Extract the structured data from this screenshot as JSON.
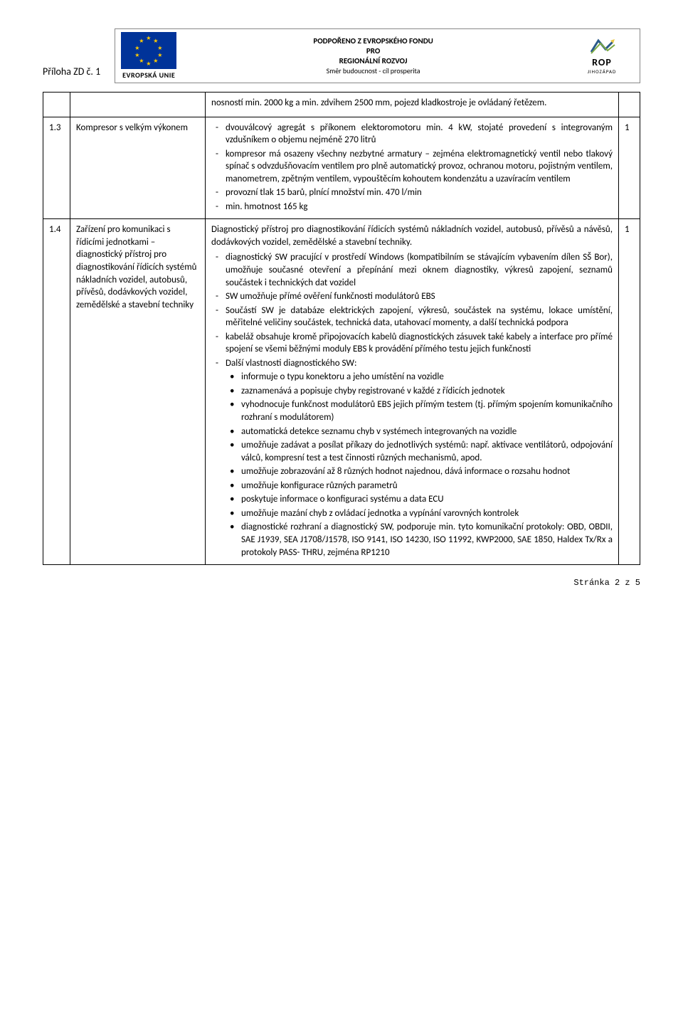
{
  "header": {
    "label": "Příloha ZD č. 1",
    "eu_label": "EVROPSKÁ UNIE",
    "banner_line1": "PODPOŘENO Z EVROPSKÉHO FONDU",
    "banner_line2": "PRO",
    "banner_line3": "REGIONÁLNÍ ROZVOJ",
    "banner_line4": "Směr budoucnost - cíl prosperita",
    "rop_text": "ROP",
    "rop_sub": "JIHOZÁPAD"
  },
  "rows": [
    {
      "num": "",
      "name": "",
      "desc_intro": "nosností min. 2000 kg a min. zdvihem 2500 mm, pojezd kladkostroje je ovládaný řetězem.",
      "qty": ""
    },
    {
      "num": "1.3",
      "name": "Kompresor s velkým výkonem",
      "dashes": [
        "dvouválcový agregát s příkonem elektoromotoru min. 4 kW, stojaté provedení s integrovaným vzdušníkem o objemu nejméně 270 litrů",
        "kompresor má osazeny všechny nezbytné armatury – zejména elektromagnetický ventil nebo tlakový spínač s odvzdušňovacím ventilem pro plně automatický provoz, ochranou motoru, pojistným ventilem, manometrem, zpětným ventilem, vypouštěcím kohoutem kondenzátu a uzavíracím ventilem",
        "provozní tlak 15 barů, plnící množství min. 470 l/min",
        "min. hmotnost 165 kg"
      ],
      "qty": "1"
    },
    {
      "num": "1.4",
      "name": "Zařízení pro komunikaci s řídicími jednotkami – diagnostický přístroj pro diagnostikování řídicích systémů nákladních vozidel, autobusů, přívěsů, dodávkových vozidel, zemědělské a stavební techniky",
      "intro": "Diagnostický přístroj pro diagnostikování řídicích systémů nákladních vozidel, autobusů, přívěsů a návěsů, dodávkových vozidel, zemědělské a stavební techniky.",
      "dashes": [
        "diagnostický SW pracující v prostředí Windows (kompatibilním se stávajícím vybavením dílen SŠ Bor), umožňuje současné otevření a přepínání mezi oknem diagnostiky, výkresů zapojení, seznamů součástek i technických dat vozidel",
        "SW umožňuje přímé ověření funkčnosti modulátorů EBS",
        "Součástí SW je databáze elektrických zapojení, výkresů, součástek na systému, lokace umístění, měřitelné veličiny součástek, technická data, utahovací momenty, a další technická podpora",
        "kabeláž obsahuje kromě připojovacích kabelů diagnostických zásuvek také kabely a interface pro přímé spojení se všemi běžnými moduly EBS k provádění přímého testu jejich funkčnosti",
        "Další vlastnosti diagnostického SW:"
      ],
      "bullets": [
        "informuje o typu konektoru a jeho umístění na vozidle",
        "zaznamenává a popisuje chyby registrované v každé z řídicích jednotek",
        "vyhodnocuje funkčnost modulátorů EBS jejich přímým testem (tj. přímým spojením komunikačního rozhraní s modulátorem)",
        "automatická detekce seznamu chyb v systémech integrovaných na vozidle",
        "umožňuje zadávat a posílat příkazy do jednotlivých systémů: např. aktivace ventilátorů, odpojování válců, kompresní test a test činnosti různých mechanismů, apod.",
        "umožňuje zobrazování až 8 různých hodnot najednou, dává informace o rozsahu hodnot",
        "umožňuje konfigurace různých parametrů",
        "poskytuje informace o konfiguraci systému a data ECU",
        "umožňuje mazání chyb z ovládací jednotka a vypínání varovných kontrolek",
        "diagnostické rozhraní a diagnostický SW, podporuje min. tyto komunikační protokoly: OBD, OBDII, SAE J1939, SEA J1708/J1578, ISO 9141, ISO 14230, ISO 11992, KWP2000, SAE 1850, Haldex Tx/Rx a protokoly PASS- THRU, zejména RP1210"
      ],
      "qty": "1"
    }
  ],
  "footer": "Stránka 2 z 5"
}
